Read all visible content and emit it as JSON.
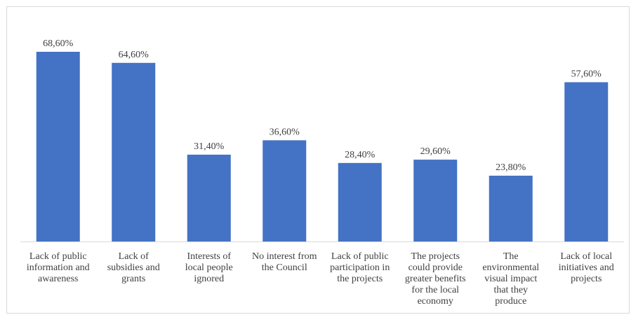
{
  "chart_data": {
    "type": "bar",
    "title": "",
    "xlabel": "",
    "ylabel": "",
    "ylim": [
      0,
      70
    ],
    "grid": false,
    "legend": "none",
    "bar_color": "#4472c4",
    "categories": [
      [
        "Lack of public",
        "information and",
        "awareness"
      ],
      [
        "Lack of",
        "subsidies and",
        "grants"
      ],
      [
        "Interests of",
        "local people",
        "ignored"
      ],
      [
        "No interest from",
        "the Council"
      ],
      [
        "Lack of public",
        "participation in",
        "the projects"
      ],
      [
        "The projects",
        "could provide",
        "greater benefits",
        "for the local",
        "economy"
      ],
      [
        "The",
        "environmental",
        "visual impact",
        "that they",
        "produce"
      ],
      [
        "Lack of local",
        "initiatives and",
        "projects"
      ]
    ],
    "values": [
      68.6,
      64.6,
      31.4,
      36.6,
      28.4,
      29.6,
      23.8,
      57.6
    ],
    "value_labels": [
      "68,60%",
      "64,60%",
      "31,40%",
      "36,60%",
      "28,40%",
      "29,60%",
      "23,80%",
      "57,60%"
    ]
  }
}
